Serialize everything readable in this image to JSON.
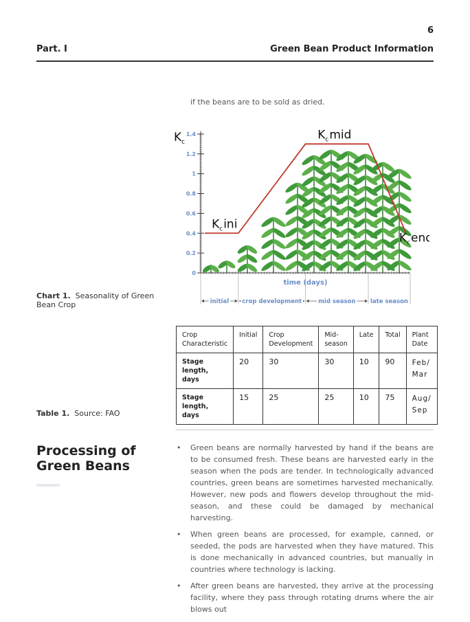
{
  "header": {
    "page_number": "6",
    "part": "Part. I",
    "title": "Green Bean Product Information"
  },
  "intro": "if the beans are to be sold as dried.",
  "chart_data": {
    "type": "line",
    "ylabel": "K",
    "ylabel_sub": "c",
    "xlabel": "time (days)",
    "x": [
      2,
      18,
      50,
      80,
      98
    ],
    "values": [
      0.4,
      0.4,
      1.3,
      1.3,
      0.4
    ],
    "color": "#c0392b",
    "xlim": [
      0,
      100
    ],
    "ylim": [
      0,
      1.4
    ],
    "yticks": [
      0,
      0.2,
      0.4,
      0.6,
      0.8,
      1,
      1.2,
      1.4
    ],
    "annotations": [
      "ini",
      "mid",
      "end"
    ],
    "stages": [
      "initial",
      "crop development",
      "mid season",
      "late season"
    ]
  },
  "chart_caption": {
    "label": "Chart 1.",
    "text": "Seasonality of Green Bean Crop"
  },
  "table": {
    "header": [
      "Crop Characteristic",
      "Initial",
      "Crop Development",
      "Mid-season",
      "Late",
      "Total",
      "Plant Date"
    ],
    "rows": [
      [
        "Stage length, days",
        "20",
        "30",
        "30",
        "10",
        "90",
        "Feb/ Mar"
      ],
      [
        "Stage length, days",
        "15",
        "25",
        "25",
        "10",
        "75",
        "Aug/ Sep"
      ]
    ]
  },
  "table_caption": {
    "label": "Table 1.",
    "text": "Source: FAO"
  },
  "section": {
    "title": "Processing of Green Beans",
    "bullets": [
      "Green beans are normally harvested by hand if the beans are to be consumed fresh. These beans are harvested early in the season when the pods are tender. In technologically advanced countries, green beans are sometimes harvested mechanically. However, new pods and flowers develop throughout the mid-season, and these could be damaged by mechanical harvesting.",
      "When green beans are processed, for example, canned, or seeded, the pods are harvested when they have matured. This is done mechanically in advanced countries, but manually in countries where technology is lacking.",
      "After green beans are harvested, they arrive at the processing facility, where they pass through rotating drums where the air blows out"
    ]
  }
}
